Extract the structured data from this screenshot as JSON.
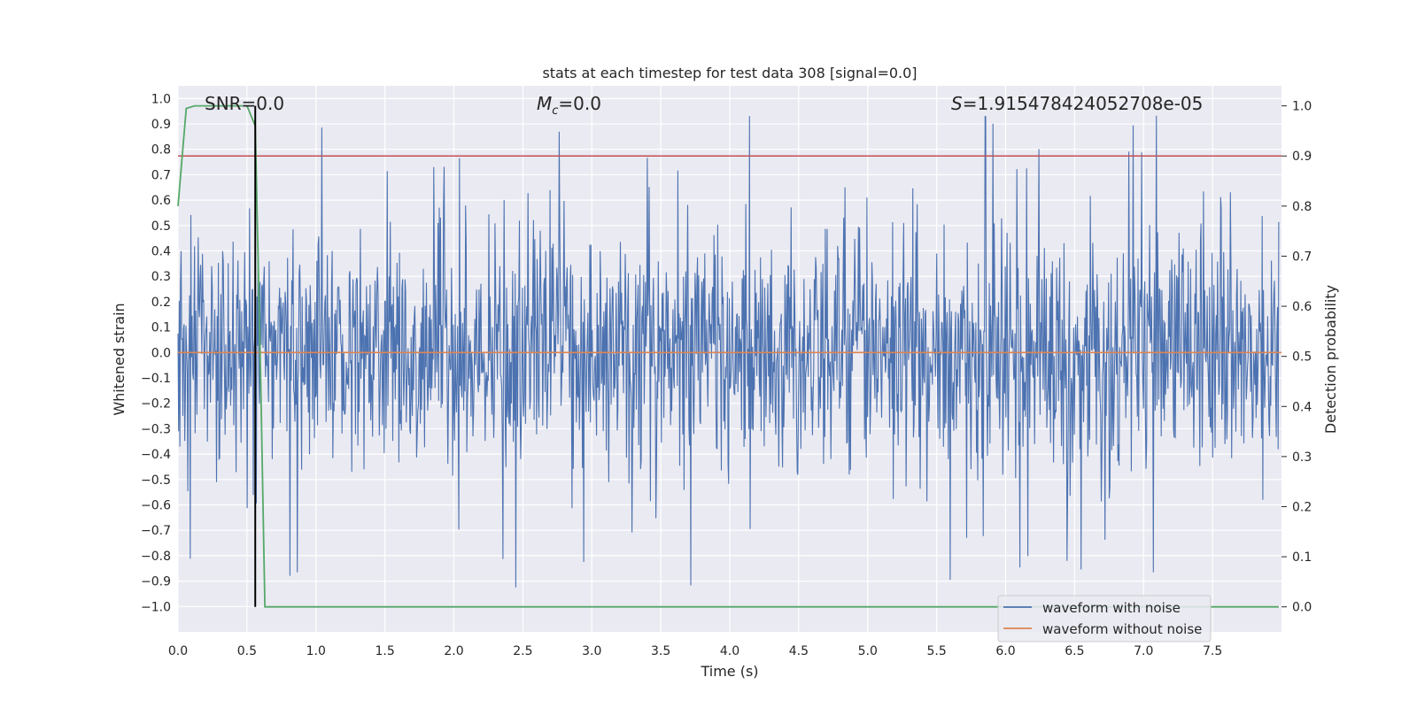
{
  "chart_data": {
    "type": "line",
    "title": "stats at each timestep for test data 308 [signal=0.0]",
    "xlabel": "Time (s)",
    "ylabel": "Whitened strain",
    "y2label": "Detection probability",
    "xlim": [
      0.0,
      8.0
    ],
    "ylim": [
      -1.1,
      1.05
    ],
    "y2lim": [
      -0.05,
      1.04
    ],
    "xticks": [
      "0.0",
      "0.5",
      "1.0",
      "1.5",
      "2.0",
      "2.5",
      "3.0",
      "3.5",
      "4.0",
      "4.5",
      "5.0",
      "5.5",
      "6.0",
      "6.5",
      "7.0",
      "7.5"
    ],
    "yticks": [
      "1.0",
      "0.9",
      "0.8",
      "0.7",
      "0.6",
      "0.5",
      "0.4",
      "0.3",
      "0.2",
      "0.1",
      "0.0",
      "−0.1",
      "−0.2",
      "−0.3",
      "−0.4",
      "−0.5",
      "−0.6",
      "−0.7",
      "−0.8",
      "−0.9",
      "−1.0"
    ],
    "y2ticks": [
      "1.0",
      "0.9",
      "0.8",
      "0.7",
      "0.6",
      "0.5",
      "0.4",
      "0.3",
      "0.2",
      "0.1",
      "0.0"
    ],
    "annotations": {
      "snr": "SNR=0.0",
      "mc_symbol": "M",
      "mc_sub": "c",
      "mc_value": "=0.0",
      "s_symbol": "S",
      "s_value": "=1.915478424052708e-05"
    },
    "series": [
      {
        "name": "waveform with noise",
        "color": "#4c72b0",
        "axis": "left",
        "description": "dense noise signal roughly between -0.5 and 0.5 with spikes to about -1.0 and 0.95"
      },
      {
        "name": "waveform without noise",
        "color": "#dd8452",
        "axis": "left",
        "values_constant": 0.0
      },
      {
        "name": "",
        "color": "#55a868",
        "axis": "right",
        "x": [
          0.0,
          0.06,
          0.12,
          0.2,
          0.3,
          0.4,
          0.5,
          0.56,
          0.6,
          0.63,
          0.7,
          8.0
        ],
        "values": [
          0.8,
          0.995,
          1.0,
          1.0,
          1.0,
          1.0,
          1.0,
          0.96,
          0.45,
          0.0,
          0.0,
          0.0
        ]
      }
    ],
    "threshold_right": 0.9,
    "threshold_color": "#c44e52",
    "marker_time": 0.56,
    "marker_color": "#000000",
    "grid": true,
    "legend": "bottom-right",
    "background": "#eaeaf2"
  }
}
